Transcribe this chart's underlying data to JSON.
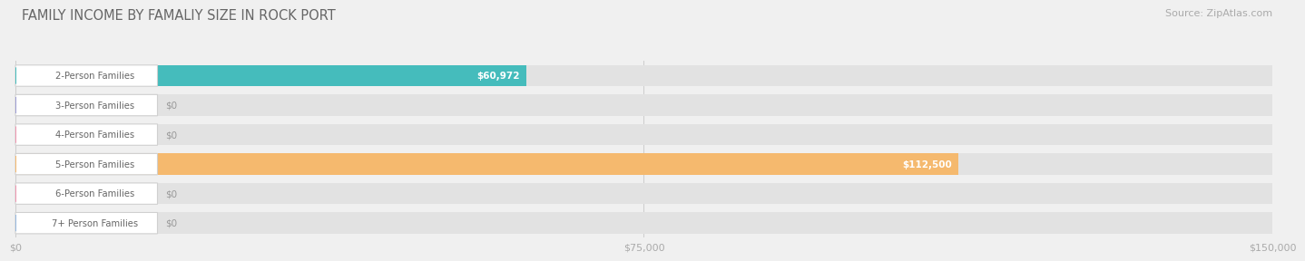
{
  "title": "FAMILY INCOME BY FAMALIY SIZE IN ROCK PORT",
  "source": "Source: ZipAtlas.com",
  "categories": [
    "2-Person Families",
    "3-Person Families",
    "4-Person Families",
    "5-Person Families",
    "6-Person Families",
    "7+ Person Families"
  ],
  "values": [
    60972,
    0,
    0,
    112500,
    0,
    0
  ],
  "bar_colors": [
    "#45bcbc",
    "#9e9ed4",
    "#f096b0",
    "#f5b96e",
    "#f096b0",
    "#96b8de"
  ],
  "value_labels": [
    "$60,972",
    "$0",
    "$0",
    "$112,500",
    "$0",
    "$0"
  ],
  "xlim": [
    0,
    150000
  ],
  "xticks": [
    0,
    75000,
    150000
  ],
  "xticklabels": [
    "$0",
    "$75,000",
    "$150,000"
  ],
  "bg_color": "#f0f0f0",
  "bar_bg_color": "#e2e2e2",
  "title_fontsize": 10.5,
  "source_fontsize": 8
}
